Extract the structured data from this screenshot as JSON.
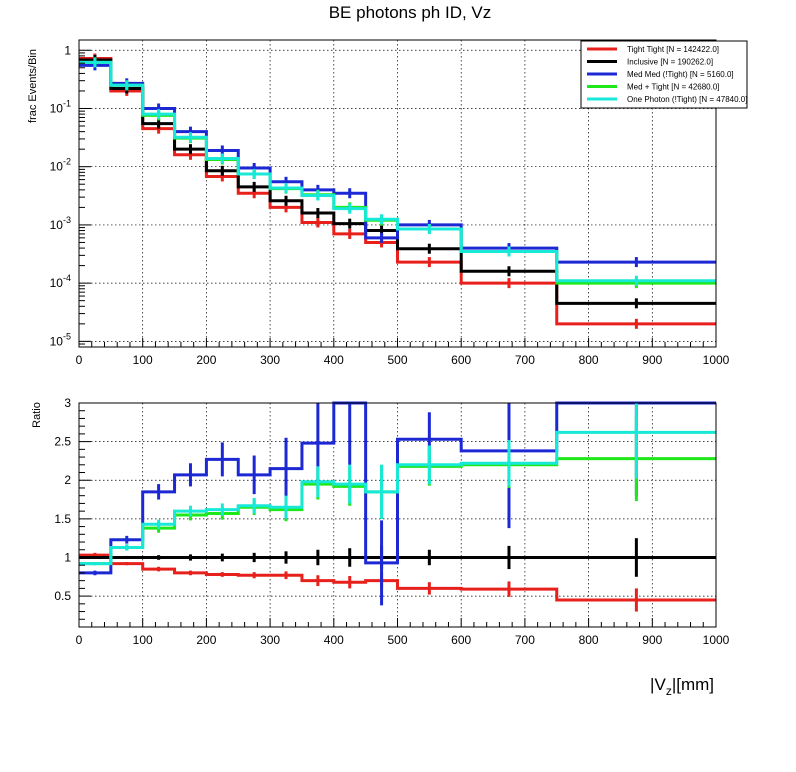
{
  "chart_data": [
    {
      "type": "line",
      "step": true,
      "title": "BE photons ph ID, Vz",
      "xlabel": "|V_z|[mm]",
      "ylabel": "frac Events/Bin",
      "yscale": "log",
      "xlim": [
        0,
        1000
      ],
      "ylim": [
        8e-06,
        1.5
      ],
      "grid": true,
      "legend_position": "top-right",
      "x_ticks": [
        "0",
        "100",
        "200",
        "300",
        "400",
        "500",
        "600",
        "700",
        "800",
        "900",
        "1000"
      ],
      "y_ticks": [
        {
          "value": 1,
          "base": "1",
          "exp": ""
        },
        {
          "value": 0.1,
          "base": "10",
          "exp": "-1"
        },
        {
          "value": 0.01,
          "base": "10",
          "exp": "-2"
        },
        {
          "value": 0.001,
          "base": "10",
          "exp": "-3"
        },
        {
          "value": 0.0001,
          "base": "10",
          "exp": "-4"
        },
        {
          "value": 1e-05,
          "base": "10",
          "exp": "-5"
        }
      ],
      "bin_edges": [
        0,
        50,
        100,
        150,
        200,
        250,
        300,
        350,
        400,
        450,
        500,
        600,
        750,
        1000
      ],
      "series": [
        {
          "name": "Tight Tight [N = 142422.0]",
          "color": "#e8201c",
          "values": [
            0.72,
            0.2,
            0.045,
            0.016,
            0.0068,
            0.0035,
            0.002,
            0.0011,
            0.0007,
            0.0005,
            0.00023,
            0.0001,
            2e-05
          ]
        },
        {
          "name": "Inclusive [N = 190262.0]",
          "color": "#000000",
          "values": [
            0.68,
            0.22,
            0.055,
            0.02,
            0.0085,
            0.0045,
            0.0026,
            0.0016,
            0.00105,
            0.0008,
            0.00039,
            0.00016,
            4.5e-05
          ]
        },
        {
          "name": "Med Med (!Tight) [N = 5160.0]",
          "color": "#1c28d4",
          "values": [
            0.55,
            0.27,
            0.1,
            0.04,
            0.019,
            0.0095,
            0.0055,
            0.004,
            0.0035,
            0.0006,
            0.001,
            0.0004,
            0.00023
          ]
        },
        {
          "name": "Med + Tight [N = 42680.0]",
          "color": "#1ee81a",
          "values": [
            0.62,
            0.25,
            0.076,
            0.031,
            0.0133,
            0.0075,
            0.0042,
            0.0033,
            0.002,
            0.0012,
            0.00085,
            0.00035,
            0.0001
          ]
        },
        {
          "name": "One Photon (!Tight) [N = 47840.0]",
          "color": "#18e8d8",
          "values": [
            0.62,
            0.25,
            0.08,
            0.032,
            0.0138,
            0.0075,
            0.0043,
            0.0032,
            0.0019,
            0.00125,
            0.00085,
            0.00035,
            0.00011
          ]
        }
      ]
    },
    {
      "type": "line",
      "step": true,
      "title": "",
      "xlabel": "|V_z|[mm]",
      "ylabel": "Ratio",
      "xlim": [
        0,
        1000
      ],
      "ylim": [
        0.1,
        3
      ],
      "grid": true,
      "x_ticks": [
        "0",
        "100",
        "200",
        "300",
        "400",
        "500",
        "600",
        "700",
        "800",
        "900",
        "1000"
      ],
      "y_ticks": [
        "0.5",
        "1",
        "1.5",
        "2",
        "2.5",
        "3"
      ],
      "bin_edges": [
        0,
        50,
        100,
        150,
        200,
        250,
        300,
        350,
        400,
        450,
        500,
        600,
        750,
        1000
      ],
      "series": [
        {
          "name": "Tight Tight",
          "color": "#e8201c",
          "values": [
            1.03,
            0.92,
            0.85,
            0.8,
            0.78,
            0.77,
            0.77,
            0.7,
            0.68,
            0.7,
            0.6,
            0.59,
            0.45
          ],
          "errors": [
            0.03,
            0.02,
            0.03,
            0.03,
            0.03,
            0.04,
            0.05,
            0.07,
            0.08,
            0.1,
            0.08,
            0.1,
            0.15
          ]
        },
        {
          "name": "Inclusive",
          "color": "#000000",
          "values": [
            1,
            1,
            1,
            1,
            1,
            1,
            1,
            1,
            1,
            1,
            1,
            1,
            1
          ],
          "errors": [
            0.02,
            0.02,
            0.03,
            0.04,
            0.05,
            0.06,
            0.08,
            0.1,
            0.12,
            0.15,
            0.1,
            0.15,
            0.25
          ]
        },
        {
          "name": "Med Med (!Tight)",
          "color": "#1c28d4",
          "values": [
            0.8,
            1.23,
            1.85,
            2.07,
            2.27,
            2.07,
            2.15,
            2.48,
            3.0,
            0.93,
            2.53,
            2.38,
            3.0
          ],
          "errors": [
            0.03,
            0.05,
            0.1,
            0.15,
            0.22,
            0.25,
            0.4,
            0.6,
            0.8,
            0.55,
            0.35,
            1.0,
            1.2
          ]
        },
        {
          "name": "Med + Tight",
          "color": "#1ee81a",
          "values": [
            0.92,
            1.13,
            1.38,
            1.55,
            1.57,
            1.65,
            1.62,
            1.95,
            1.92,
            1.85,
            2.18,
            2.2,
            2.28
          ],
          "errors": [
            0.02,
            0.04,
            0.06,
            0.07,
            0.08,
            0.1,
            0.15,
            0.2,
            0.25,
            0.35,
            0.25,
            0.3,
            0.55
          ]
        },
        {
          "name": "One Photon (!Tight)",
          "color": "#18e8d8",
          "values": [
            0.92,
            1.13,
            1.43,
            1.6,
            1.62,
            1.67,
            1.65,
            1.98,
            1.95,
            1.85,
            2.2,
            2.22,
            2.62
          ],
          "errors": [
            0.02,
            0.04,
            0.06,
            0.07,
            0.08,
            0.1,
            0.15,
            0.2,
            0.25,
            0.35,
            0.25,
            0.3,
            0.6
          ]
        }
      ]
    }
  ]
}
